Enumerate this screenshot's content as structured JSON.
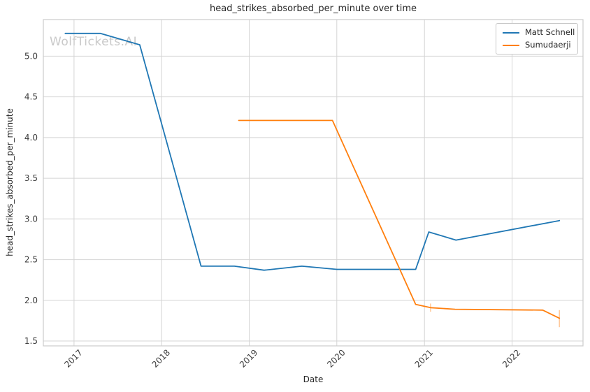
{
  "title": "head_strikes_absorbed_per_minute over time",
  "watermark": "WolfTickets.AI",
  "axes": {
    "xlabel": "Date",
    "ylabel": "head_strikes_absorbed_per_minute"
  },
  "legend": {
    "items": [
      {
        "label": "Matt Schnell",
        "color": "#1f77b4"
      },
      {
        "label": "Sumudaerji",
        "color": "#ff7f0e"
      }
    ]
  },
  "chart_data": {
    "type": "line",
    "title": "head_strikes_absorbed_per_minute over time",
    "xlabel": "Date",
    "ylabel": "head_strikes_absorbed_per_minute",
    "xlim": [
      2016.65,
      2022.81
    ],
    "ylim": [
      1.44,
      5.45
    ],
    "x_ticks": [
      2017,
      2018,
      2019,
      2020,
      2021,
      2022
    ],
    "y_ticks": [
      1.5,
      2.0,
      2.5,
      3.0,
      3.5,
      4.0,
      4.5,
      5.0
    ],
    "grid": true,
    "grid_color": "#d4d4d4",
    "spine_color": "#cccccc",
    "tick_label_color": "#3d3d3d",
    "legend_position": "upper right",
    "x_unit": "decimal_year",
    "series": [
      {
        "name": "Matt Schnell",
        "color": "#1f77b4",
        "points": [
          [
            2016.9,
            5.28
          ],
          [
            2017.3,
            5.28
          ],
          [
            2017.75,
            5.14
          ],
          [
            2018.45,
            2.42
          ],
          [
            2018.83,
            2.42
          ],
          [
            2019.17,
            2.37
          ],
          [
            2019.6,
            2.42
          ],
          [
            2020.0,
            2.38
          ],
          [
            2020.9,
            2.38
          ],
          [
            2021.05,
            2.84
          ],
          [
            2021.36,
            2.74
          ],
          [
            2022.54,
            2.98
          ]
        ]
      },
      {
        "name": "Sumudaerji",
        "color": "#ff7f0e",
        "points": [
          [
            2018.88,
            4.21
          ],
          [
            2019.95,
            4.21
          ],
          [
            2020.9,
            1.95
          ],
          [
            2021.07,
            1.91
          ],
          [
            2021.35,
            1.89
          ],
          [
            2022.35,
            1.88
          ],
          [
            2022.54,
            1.78
          ]
        ],
        "error_bars": [
          {
            "x": 2021.07,
            "lo": 1.86,
            "hi": 1.96
          },
          {
            "x": 2022.54,
            "lo": 1.67,
            "hi": 1.88
          }
        ]
      }
    ]
  }
}
